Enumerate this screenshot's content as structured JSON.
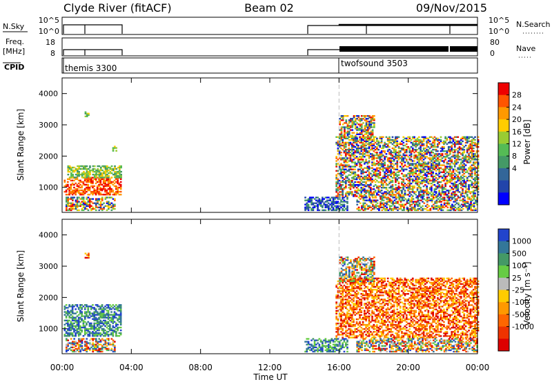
{
  "header": {
    "station": "Clyde River (fitACF)",
    "beam": "Beam 02",
    "date": "09/Nov/2015"
  },
  "summary_panels": {
    "nsky_label": "N.Sky",
    "nsky_ticks": [
      "10^5",
      "10^0"
    ],
    "nsearch_label": "N.Search",
    "nsearch_ticks": [
      "10^5",
      "10^0"
    ],
    "freq_label": "Freq.",
    "freq_unit": "[MHz]",
    "freq_ticks": [
      "18",
      "8"
    ],
    "nave_label": "Nave",
    "nave_ticks": [
      "80",
      "0"
    ],
    "cpid_label": "CPID",
    "programs": [
      {
        "name": "themis 3300",
        "start_hour": 0
      },
      {
        "name": "twofsound 3503",
        "start_hour": 16
      }
    ]
  },
  "colorbars": {
    "power": {
      "label": "Power [dB]",
      "tick_labels": [
        "28",
        "24",
        "20",
        "16",
        "12",
        "8",
        "4"
      ],
      "colors": [
        "#ee0000",
        "#ff5500",
        "#ff9900",
        "#ffcc00",
        "#99cc33",
        "#55bb55",
        "#449966",
        "#336699",
        "#2244aa",
        "#0000ff"
      ]
    },
    "velocity": {
      "label": "Velocity [m s⁻¹]",
      "tick_labels": [
        "1000",
        "500",
        "100",
        "25",
        "-25",
        "-100",
        "-500",
        "-1000"
      ],
      "colors": [
        "#2244cc",
        "#337799",
        "#449966",
        "#66cc44",
        "#bbbbbb",
        "#ffcc00",
        "#ff9900",
        "#ff6600",
        "#ee3300",
        "#dd0000"
      ]
    }
  },
  "chart_data": [
    {
      "type": "heatmap",
      "title": "Power",
      "xlabel": "Time UT",
      "ylabel": "Slant Range [km]",
      "xlim_hours": [
        0,
        24
      ],
      "ylim": [
        200,
        4500
      ],
      "x_ticks": [
        "00:00",
        "04:00",
        "08:00",
        "12:00",
        "16:00",
        "20:00",
        "00:00"
      ],
      "y_ticks": [
        1000,
        2000,
        3000,
        4000
      ],
      "grid": false,
      "divider_hour": 16,
      "regions": [
        {
          "t0": 0.1,
          "t1": 3.4,
          "r0": 750,
          "r1": 1300,
          "level": "high"
        },
        {
          "t0": 0.3,
          "t1": 3.4,
          "r0": 1300,
          "r1": 1700,
          "level": "medium"
        },
        {
          "t0": 0.2,
          "t1": 3.0,
          "r0": 250,
          "r1": 700,
          "level": "mixed"
        },
        {
          "t0": 1.3,
          "t1": 1.5,
          "r0": 3250,
          "r1": 3400,
          "level": "medium"
        },
        {
          "t0": 2.9,
          "t1": 3.1,
          "r0": 2150,
          "r1": 2300,
          "level": "medium"
        },
        {
          "t0": 14.0,
          "t1": 16.5,
          "r0": 250,
          "r1": 700,
          "level": "low"
        },
        {
          "t0": 15.8,
          "t1": 24.0,
          "r0": 700,
          "r1": 2600,
          "level": "mixed"
        },
        {
          "t0": 16.0,
          "t1": 18.0,
          "r0": 2500,
          "r1": 3300,
          "level": "mixed"
        },
        {
          "t0": 17.0,
          "t1": 24.0,
          "r0": 250,
          "r1": 700,
          "level": "mixed"
        }
      ]
    },
    {
      "type": "heatmap",
      "title": "Velocity",
      "xlabel": "Time UT",
      "ylabel": "Slant Range [km]",
      "xlim_hours": [
        0,
        24
      ],
      "ylim": [
        200,
        4500
      ],
      "x_ticks": [
        "00:00",
        "04:00",
        "08:00",
        "12:00",
        "16:00",
        "20:00",
        "00:00"
      ],
      "y_ticks": [
        1000,
        2000,
        3000,
        4000
      ],
      "grid": false,
      "divider_hour": 16,
      "regions": [
        {
          "t0": 0.1,
          "t1": 3.4,
          "r0": 750,
          "r1": 1750,
          "level": "positive"
        },
        {
          "t0": 0.2,
          "t1": 3.0,
          "r0": 250,
          "r1": 700,
          "level": "mixed"
        },
        {
          "t0": 1.3,
          "t1": 1.5,
          "r0": 3250,
          "r1": 3400,
          "level": "negative"
        },
        {
          "t0": 14.0,
          "t1": 16.5,
          "r0": 250,
          "r1": 700,
          "level": "positive"
        },
        {
          "t0": 15.8,
          "t1": 24.0,
          "r0": 700,
          "r1": 2600,
          "level": "negative"
        },
        {
          "t0": 16.0,
          "t1": 18.0,
          "r0": 2500,
          "r1": 3300,
          "level": "mixed"
        },
        {
          "t0": 17.0,
          "t1": 24.0,
          "r0": 250,
          "r1": 700,
          "level": "mixed"
        }
      ]
    }
  ]
}
